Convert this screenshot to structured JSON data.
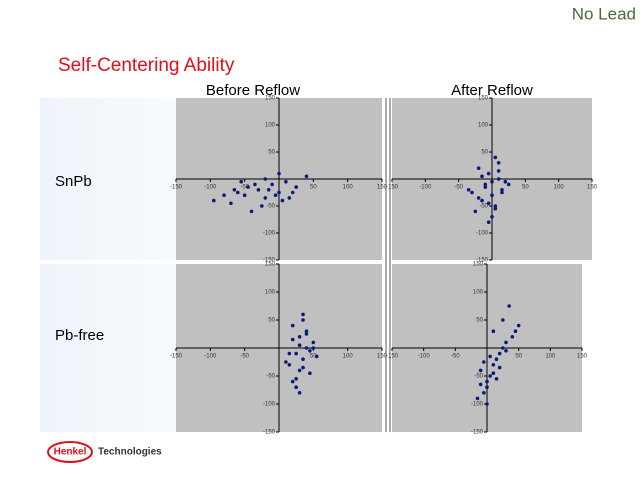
{
  "slide": {
    "tag": "No Lead",
    "title": "Self-Centering Ability",
    "columns": [
      "Before Reflow",
      "After Reflow"
    ],
    "rows": [
      "SnPb",
      "Pb-free"
    ],
    "logo": "Henkel",
    "brand": "Technologies"
  },
  "chart_data": [
    {
      "type": "scatter",
      "color": "#0a1a7a",
      "xlim": [
        -150,
        150
      ],
      "ylim": [
        -150,
        150
      ],
      "xticks": [
        -150,
        -100,
        -50,
        50,
        100,
        150
      ],
      "yticks": [
        150,
        100,
        50,
        -50,
        -100,
        -150
      ],
      "x": [
        -80,
        -60,
        -45,
        -30,
        -20,
        -10,
        0,
        10,
        25,
        40,
        -95,
        -70,
        -50,
        -35,
        -25,
        -15,
        -5,
        5,
        20,
        -40,
        -55,
        -20,
        0,
        15,
        -65
      ],
      "values": [
        -30,
        -25,
        -15,
        -20,
        -35,
        -10,
        -25,
        -5,
        -15,
        5,
        -40,
        -45,
        -30,
        -10,
        -50,
        -20,
        -30,
        -40,
        -25,
        -60,
        -5,
        0,
        10,
        -35,
        -20
      ]
    },
    {
      "type": "scatter",
      "color": "#0a1a7a",
      "xlim": [
        -150,
        150
      ],
      "ylim": [
        -150,
        150
      ],
      "xticks": [
        -150,
        -100,
        -50,
        50,
        100,
        150
      ],
      "yticks": [
        150,
        100,
        50,
        -50,
        -100,
        -150
      ],
      "x": [
        -20,
        -10,
        0,
        5,
        10,
        -15,
        -5,
        15,
        20,
        -25,
        -30,
        0,
        10,
        -10,
        5,
        -20,
        25,
        -5,
        0,
        15,
        -35,
        -15,
        5,
        10,
        -5
      ],
      "values": [
        20,
        -10,
        -30,
        -50,
        0,
        -40,
        10,
        -20,
        -5,
        -60,
        -25,
        -70,
        30,
        -15,
        40,
        -35,
        -10,
        -45,
        -5,
        -25,
        -20,
        5,
        -55,
        15,
        -80
      ]
    },
    {
      "type": "scatter",
      "color": "#0a1a7a",
      "xlim": [
        -150,
        150
      ],
      "ylim": [
        -150,
        150
      ],
      "xticks": [
        -150,
        -100,
        -50,
        50,
        100,
        150
      ],
      "yticks": [
        150,
        100,
        50,
        -50,
        -100,
        -150
      ],
      "x": [
        20,
        30,
        40,
        25,
        35,
        50,
        15,
        45,
        30,
        20,
        40,
        35,
        25,
        55,
        10,
        30,
        45,
        20,
        35,
        40,
        25,
        30,
        50,
        15,
        35
      ],
      "values": [
        40,
        20,
        0,
        -10,
        -20,
        10,
        -30,
        -5,
        -40,
        -60,
        30,
        60,
        -70,
        -15,
        -25,
        5,
        -45,
        15,
        -35,
        25,
        -55,
        -80,
        0,
        -10,
        50
      ]
    },
    {
      "type": "scatter",
      "color": "#0a1a7a",
      "xlim": [
        -150,
        150
      ],
      "ylim": [
        -150,
        150
      ],
      "xticks": [
        -150,
        -100,
        -50,
        50,
        100,
        150
      ],
      "yticks": [
        150,
        100,
        50,
        -50,
        -100,
        -150
      ],
      "x": [
        -10,
        0,
        10,
        20,
        30,
        -5,
        5,
        15,
        25,
        40,
        -15,
        0,
        10,
        30,
        50,
        20,
        -5,
        10,
        25,
        35,
        0,
        15,
        -10,
        5,
        45
      ],
      "values": [
        -40,
        -60,
        -30,
        -10,
        10,
        -80,
        -50,
        -20,
        0,
        20,
        -90,
        -70,
        -45,
        -5,
        40,
        -35,
        -25,
        30,
        50,
        75,
        -100,
        -55,
        -65,
        -15,
        30
      ]
    }
  ]
}
